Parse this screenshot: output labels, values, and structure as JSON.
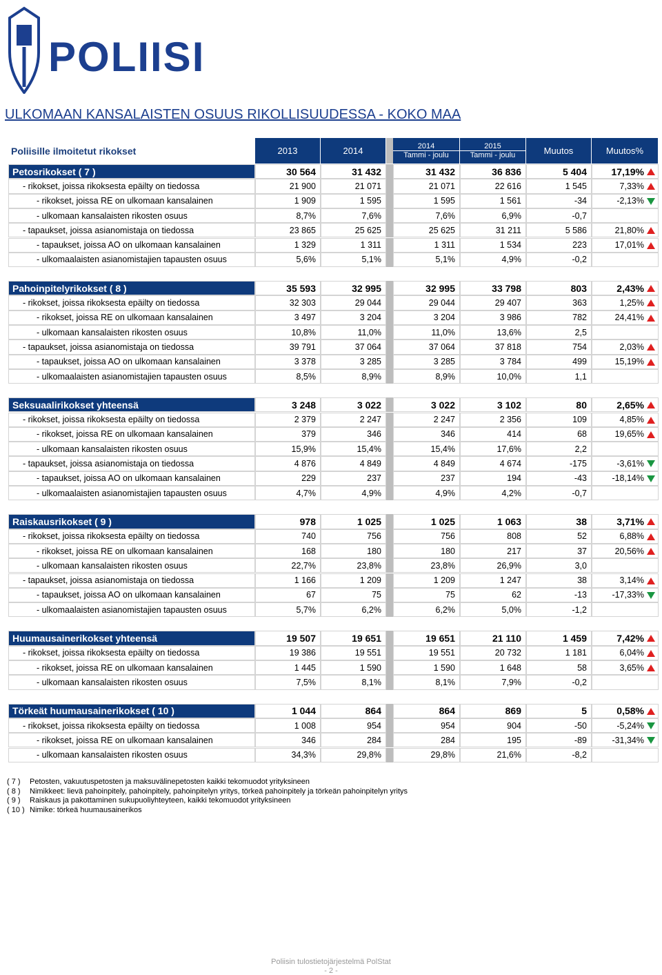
{
  "header": {
    "logo": "POLIISI",
    "title": "ULKOMAAN KANSALAISTEN OSUUS RIKOLLISUUDESSA - KOKO MAA"
  },
  "table": {
    "caption": "Poliisille ilmoitetut rikokset",
    "columns": [
      [
        "2013"
      ],
      [
        "2014"
      ],
      [
        "2014",
        "Tammi - joulu"
      ],
      [
        "2015",
        "Tammi - joulu"
      ],
      [
        "Muutos"
      ],
      [
        "Muutos%"
      ]
    ],
    "sections": [
      {
        "label": "Petosrikokset   ( 7 )",
        "cells": [
          "30 564",
          "31 432",
          "31 432",
          "36 836",
          "5 404",
          "17,19%"
        ],
        "groups": [
          {
            "label": "- rikokset, joissa rikoksesta epäilty on tiedossa",
            "cells": [
              "21 900",
              "21 071",
              "21 071",
              "22 616",
              "1 545",
              "7,33%"
            ],
            "rows": [
              {
                "label": "- rikokset, joissa RE on ulkomaan kansalainen",
                "cells": [
                  "1 909",
                  "1 595",
                  "1 595",
                  "1 561",
                  "-34",
                  "-2,13%"
                ]
              },
              {
                "label": "- ulkomaan kansalaisten rikosten osuus",
                "cells": [
                  "8,7%",
                  "7,6%",
                  "7,6%",
                  "6,9%",
                  "-0,7"
                ]
              }
            ]
          },
          {
            "label": "- tapaukset, joissa asianomistaja on tiedossa",
            "cells": [
              "23 865",
              "25 625",
              "25 625",
              "31 211",
              "5 586",
              "21,80%"
            ],
            "rows": [
              {
                "label": "- tapaukset, joissa AO on ulkomaan kansalainen",
                "cells": [
                  "1 329",
                  "1 311",
                  "1 311",
                  "1 534",
                  "223",
                  "17,01%"
                ]
              },
              {
                "label": "- ulkomaalaisten asianomistajien tapausten osuus",
                "cells": [
                  "5,6%",
                  "5,1%",
                  "5,1%",
                  "4,9%",
                  "-0,2"
                ]
              }
            ]
          }
        ]
      },
      {
        "label": "Pahoinpitelyrikokset   ( 8 )",
        "cells": [
          "35 593",
          "32 995",
          "32 995",
          "33 798",
          "803",
          "2,43%"
        ],
        "groups": [
          {
            "label": "- rikokset, joissa rikoksesta epäilty on tiedossa",
            "cells": [
              "32 303",
              "29 044",
              "29 044",
              "29 407",
              "363",
              "1,25%"
            ],
            "rows": [
              {
                "label": "- rikokset, joissa RE on ulkomaan kansalainen",
                "cells": [
                  "3 497",
                  "3 204",
                  "3 204",
                  "3 986",
                  "782",
                  "24,41%"
                ]
              },
              {
                "label": "- ulkomaan kansalaisten rikosten osuus",
                "cells": [
                  "10,8%",
                  "11,0%",
                  "11,0%",
                  "13,6%",
                  "2,5"
                ]
              }
            ]
          },
          {
            "label": "- tapaukset, joissa asianomistaja on tiedossa",
            "cells": [
              "39 791",
              "37 064",
              "37 064",
              "37 818",
              "754",
              "2,03%"
            ],
            "rows": [
              {
                "label": "- tapaukset, joissa AO on ulkomaan kansalainen",
                "cells": [
                  "3 378",
                  "3 285",
                  "3 285",
                  "3 784",
                  "499",
                  "15,19%"
                ]
              },
              {
                "label": "- ulkomaalaisten asianomistajien tapausten osuus",
                "cells": [
                  "8,5%",
                  "8,9%",
                  "8,9%",
                  "10,0%",
                  "1,1"
                ]
              }
            ]
          }
        ]
      },
      {
        "label": "Seksuaalirikokset yhteensä",
        "cells": [
          "3 248",
          "3 022",
          "3 022",
          "3 102",
          "80",
          "2,65%"
        ],
        "groups": [
          {
            "label": "- rikokset, joissa rikoksesta epäilty on tiedossa",
            "cells": [
              "2 379",
              "2 247",
              "2 247",
              "2 356",
              "109",
              "4,85%"
            ],
            "rows": [
              {
                "label": "- rikokset, joissa RE on ulkomaan kansalainen",
                "cells": [
                  "379",
                  "346",
                  "346",
                  "414",
                  "68",
                  "19,65%"
                ]
              },
              {
                "label": "- ulkomaan kansalaisten rikosten osuus",
                "cells": [
                  "15,9%",
                  "15,4%",
                  "15,4%",
                  "17,6%",
                  "2,2"
                ]
              }
            ]
          },
          {
            "label": "- tapaukset, joissa asianomistaja on tiedossa",
            "cells": [
              "4 876",
              "4 849",
              "4 849",
              "4 674",
              "-175",
              "-3,61%"
            ],
            "rows": [
              {
                "label": "- tapaukset, joissa AO on ulkomaan kansalainen",
                "cells": [
                  "229",
                  "237",
                  "237",
                  "194",
                  "-43",
                  "-18,14%"
                ]
              },
              {
                "label": "- ulkomaalaisten asianomistajien tapausten osuus",
                "cells": [
                  "4,7%",
                  "4,9%",
                  "4,9%",
                  "4,2%",
                  "-0,7"
                ]
              }
            ]
          }
        ]
      },
      {
        "label": "Raiskausrikokset   ( 9 )",
        "cells": [
          "978",
          "1 025",
          "1 025",
          "1 063",
          "38",
          "3,71%"
        ],
        "groups": [
          {
            "label": "- rikokset, joissa rikoksesta epäilty on tiedossa",
            "cells": [
              "740",
              "756",
              "756",
              "808",
              "52",
              "6,88%"
            ],
            "rows": [
              {
                "label": "- rikokset, joissa RE on ulkomaan kansalainen",
                "cells": [
                  "168",
                  "180",
                  "180",
                  "217",
                  "37",
                  "20,56%"
                ]
              },
              {
                "label": "- ulkomaan kansalaisten rikosten osuus",
                "cells": [
                  "22,7%",
                  "23,8%",
                  "23,8%",
                  "26,9%",
                  "3,0"
                ]
              }
            ]
          },
          {
            "label": "- tapaukset, joissa asianomistaja on tiedossa",
            "cells": [
              "1 166",
              "1 209",
              "1 209",
              "1 247",
              "38",
              "3,14%"
            ],
            "rows": [
              {
                "label": "- tapaukset, joissa AO on ulkomaan kansalainen",
                "cells": [
                  "67",
                  "75",
                  "75",
                  "62",
                  "-13",
                  "-17,33%"
                ]
              },
              {
                "label": "- ulkomaalaisten asianomistajien tapausten osuus",
                "cells": [
                  "5,7%",
                  "6,2%",
                  "6,2%",
                  "5,0%",
                  "-1,2"
                ]
              }
            ]
          }
        ]
      },
      {
        "label": "Huumausainerikokset yhteensä",
        "cells": [
          "19 507",
          "19 651",
          "19 651",
          "21 110",
          "1 459",
          "7,42%"
        ],
        "groups": [
          {
            "label": "- rikokset, joissa rikoksesta epäilty on tiedossa",
            "cells": [
              "19 386",
              "19 551",
              "19 551",
              "20 732",
              "1 181",
              "6,04%"
            ],
            "rows": [
              {
                "label": "- rikokset, joissa RE on ulkomaan kansalainen",
                "cells": [
                  "1 445",
                  "1 590",
                  "1 590",
                  "1 648",
                  "58",
                  "3,65%"
                ]
              },
              {
                "label": "- ulkomaan kansalaisten rikosten osuus",
                "cells": [
                  "7,5%",
                  "8,1%",
                  "8,1%",
                  "7,9%",
                  "-0,2"
                ]
              }
            ]
          }
        ]
      },
      {
        "label": "Törkeät huumausainerikokset   ( 10 )",
        "cells": [
          "1 044",
          "864",
          "864",
          "869",
          "5",
          "0,58%"
        ],
        "groups": [
          {
            "label": "- rikokset, joissa rikoksesta epäilty on tiedossa",
            "cells": [
              "1 008",
              "954",
              "954",
              "904",
              "-50",
              "-5,24%"
            ],
            "rows": [
              {
                "label": "- rikokset, joissa RE on ulkomaan kansalainen",
                "cells": [
                  "346",
                  "284",
                  "284",
                  "195",
                  "-89",
                  "-31,34%"
                ]
              },
              {
                "label": "- ulkomaan kansalaisten rikosten osuus",
                "cells": [
                  "34,3%",
                  "29,8%",
                  "29,8%",
                  "21,6%",
                  "-8,2"
                ]
              }
            ]
          }
        ]
      }
    ]
  },
  "footnotes": [
    [
      "( 7 )",
      "Petosten, vakuutuspetosten ja maksuvälinepetosten kaikki tekomuodot yrityksineen"
    ],
    [
      "( 8 )",
      "Nimikkeet: lievä pahoinpitely, pahoinpitely, pahoinpitelyn yritys, törkeä pahoinpitely ja törkeän pahoinpitelyn yritys"
    ],
    [
      "( 9 )",
      "Raiskaus ja pakottaminen sukupuoliyhteyteen, kaikki tekomuodot yrityksineen"
    ],
    [
      "( 10 )",
      "Nimike: törkeä huumausainerikos"
    ]
  ],
  "footer": {
    "source": "Poliisin tulostietojärjestelmä PolStat",
    "page": "- 2 -"
  }
}
